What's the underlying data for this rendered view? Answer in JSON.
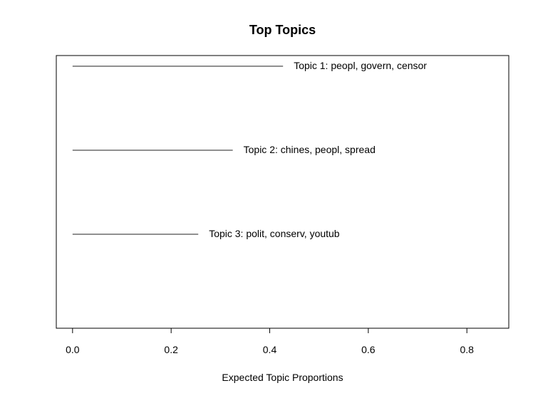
{
  "chart_data": {
    "type": "bar",
    "orientation": "horizontal",
    "title": "Top Topics",
    "xlabel": "Expected Topic Proportions",
    "ylabel": "",
    "xlim": [
      -0.033,
      0.885
    ],
    "xticks": [
      0.0,
      0.2,
      0.4,
      0.6,
      0.8
    ],
    "xtick_labels": [
      "0.0",
      "0.2",
      "0.4",
      "0.6",
      "0.8"
    ],
    "grid": false,
    "series": [
      {
        "values": [
          0.427,
          0.325,
          0.255
        ],
        "labels": [
          "Topic 1: peopl, govern, censor",
          "Topic 2: chines, peopl, spread",
          "Topic 3: polit, conserv, youtub"
        ]
      }
    ],
    "colors": {
      "line": "#4d4d4d",
      "frame": "#000000"
    }
  }
}
